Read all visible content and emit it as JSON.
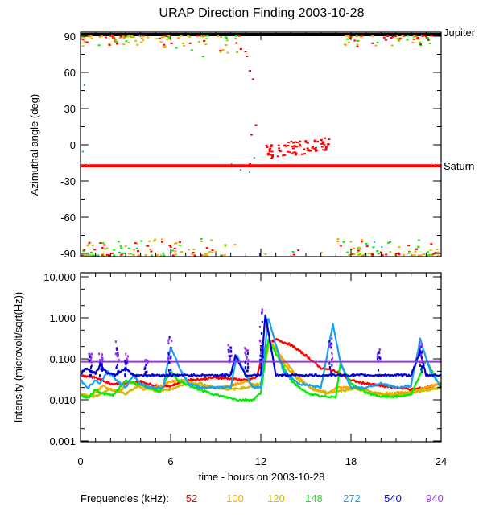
{
  "chart_data": [
    {
      "type": "scatter",
      "title": "URAP Direction Finding  2003-10-28",
      "ylabel": "Azimuthal angle (deg)",
      "xlim": [
        0,
        24
      ],
      "ylim": [
        -93,
        93
      ],
      "yticks": [
        "90",
        "60",
        "30",
        "0",
        "-30",
        "-60",
        "-90"
      ],
      "ytick_values": [
        90,
        60,
        30,
        0,
        -30,
        -60,
        -90
      ],
      "reference_lines": [
        {
          "label": "Jupiter",
          "value": 92,
          "color": "#000000"
        },
        {
          "label": "Saturn",
          "value": -17.5,
          "color": "#ff0000"
        }
      ],
      "clusters": [
        {
          "name": "near +90",
          "x_range": [
            0,
            23.5
          ],
          "y_range": [
            75,
            92
          ]
        },
        {
          "name": "near -90",
          "x_range": [
            0,
            24
          ],
          "y_range": [
            -92,
            -76
          ]
        },
        {
          "name": "52 kHz scatter",
          "x_range": [
            12,
            16.5
          ],
          "y_range": [
            -10,
            6
          ],
          "color": "#ff0000"
        }
      ]
    },
    {
      "type": "line",
      "ylabel": "Intensity (microvolt/sqrt(Hz))",
      "xlabel": "time - hours on 2003-10-28",
      "xlim": [
        0,
        24
      ],
      "ylim": [
        0.001,
        10
      ],
      "yscale": "log",
      "yticks": [
        "10.000",
        "1.000",
        "0.100",
        "0.010",
        "0.001"
      ],
      "ytick_values": [
        10,
        1,
        0.1,
        0.01,
        0.001
      ],
      "xticks": [
        "0",
        "6",
        "12",
        "18",
        "24"
      ],
      "xtick_values": [
        0,
        6,
        12,
        18,
        24
      ],
      "legend_title": "Frequencies (kHz):",
      "series": [
        {
          "name": "52",
          "color": "#ff0000",
          "x": [
            0,
            1,
            2,
            3,
            4,
            5,
            6,
            7,
            8,
            9,
            10,
            11,
            11.7,
            12.3,
            13,
            14,
            15,
            16,
            17,
            18,
            19,
            20,
            21,
            22,
            23,
            24
          ],
          "y": [
            0.04,
            0.035,
            0.025,
            0.025,
            0.028,
            0.022,
            0.022,
            0.03,
            0.032,
            0.035,
            0.033,
            0.03,
            0.035,
            0.2,
            0.3,
            0.22,
            0.12,
            0.06,
            0.05,
            0.03,
            0.025,
            0.022,
            0.02,
            0.018,
            0.02,
            0.025
          ]
        },
        {
          "name": "100",
          "color": "#ffa500",
          "x": [
            0,
            0.7,
            1.5,
            2.5,
            3.3,
            4.2,
            5,
            6,
            7,
            8,
            9,
            10,
            11,
            12,
            12.5,
            13.5,
            14.5,
            15.5,
            16.5,
            17,
            18,
            19,
            20,
            21,
            22,
            23,
            24
          ],
          "y": [
            0.014,
            0.012,
            0.022,
            0.015,
            0.028,
            0.018,
            0.02,
            0.028,
            0.03,
            0.022,
            0.02,
            0.022,
            0.028,
            0.02,
            0.3,
            0.1,
            0.035,
            0.018,
            0.014,
            0.02,
            0.02,
            0.016,
            0.014,
            0.015,
            0.015,
            0.02,
            0.025
          ]
        },
        {
          "name": "120",
          "color": "#ccbb00",
          "x": [
            0,
            1,
            2,
            3,
            4,
            5,
            6,
            7,
            8,
            9,
            10,
            11,
            12,
            12.6,
            13.5,
            14.5,
            15.5,
            16.5,
            17.5,
            18.5,
            19.5,
            20.5,
            21.5,
            22.5,
            24
          ],
          "y": [
            0.013,
            0.012,
            0.018,
            0.014,
            0.024,
            0.016,
            0.018,
            0.025,
            0.025,
            0.02,
            0.018,
            0.02,
            0.025,
            0.28,
            0.08,
            0.03,
            0.018,
            0.015,
            0.017,
            0.02,
            0.015,
            0.013,
            0.014,
            0.016,
            0.02
          ]
        },
        {
          "name": "148",
          "color": "#00ee00",
          "x": [
            0,
            0.5,
            1,
            1.5,
            2.2,
            3,
            3.7,
            4.5,
            5.3,
            6,
            6.5,
            7.5,
            8.5,
            9.5,
            10.5,
            11.5,
            12,
            12.5,
            13.2,
            14,
            15,
            16,
            17,
            17.3,
            18,
            19,
            20,
            21,
            22,
            23,
            24
          ],
          "y": [
            0.013,
            0.011,
            0.018,
            0.014,
            0.013,
            0.03,
            0.025,
            0.02,
            0.016,
            0.05,
            0.03,
            0.02,
            0.015,
            0.012,
            0.01,
            0.01,
            0.015,
            0.3,
            0.1,
            0.03,
            0.015,
            0.012,
            0.012,
            0.08,
            0.025,
            0.015,
            0.012,
            0.012,
            0.013,
            0.09,
            0.02
          ]
        },
        {
          "name": "272",
          "color": "#1aa0f0",
          "x": [
            0,
            0.5,
            1,
            1.3,
            1.8,
            2.4,
            3,
            3.5,
            4,
            4.5,
            5.5,
            6,
            6.7,
            7.2,
            8,
            9,
            10,
            10.4,
            11,
            11.5,
            12,
            12.5,
            13.5,
            14.5,
            16,
            16.8,
            17.3,
            18,
            19,
            20,
            21,
            22,
            22.6,
            23.3,
            24
          ],
          "y": [
            0.03,
            0.02,
            0.03,
            0.025,
            0.05,
            0.03,
            0.02,
            0.04,
            0.025,
            0.02,
            0.02,
            0.2,
            0.05,
            0.025,
            0.02,
            0.02,
            0.02,
            0.12,
            0.04,
            0.02,
            0.02,
            1.0,
            0.05,
            0.025,
            0.02,
            0.7,
            0.08,
            0.02,
            0.02,
            0.025,
            0.02,
            0.022,
            0.3,
            0.05,
            0.02
          ]
        },
        {
          "name": "540",
          "color": "#0000dd",
          "x": [
            0,
            0.3,
            1,
            1.3,
            1.8,
            2.3,
            3,
            3.5,
            4,
            5,
            5.7,
            6.2,
            7,
            8,
            9,
            10,
            10.3,
            11,
            11.5,
            12,
            12.3,
            13,
            14,
            16,
            18,
            20,
            21,
            22,
            22.6,
            23,
            24
          ],
          "y": [
            0.04,
            0.06,
            0.045,
            0.07,
            0.045,
            0.04,
            0.06,
            0.04,
            0.04,
            0.04,
            0.04,
            0.04,
            0.04,
            0.04,
            0.04,
            0.04,
            0.12,
            0.04,
            0.04,
            0.04,
            1.2,
            0.04,
            0.04,
            0.04,
            0.04,
            0.04,
            0.04,
            0.04,
            0.15,
            0.04,
            0.04
          ]
        },
        {
          "name": "940",
          "color": "#9933ee",
          "x": [
            0,
            24
          ],
          "y": [
            0.085,
            0.085
          ]
        }
      ]
    }
  ]
}
